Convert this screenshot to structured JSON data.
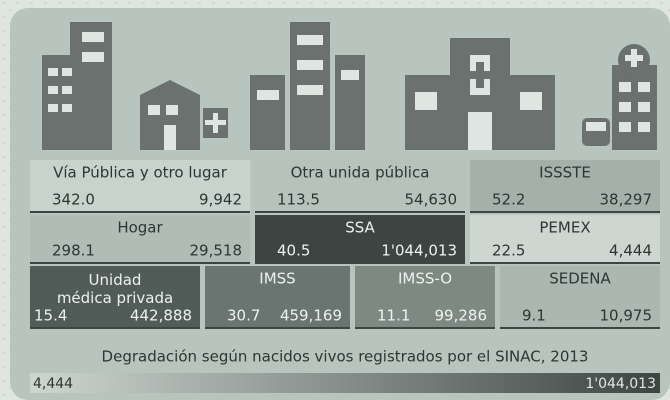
{
  "tiles": [
    {
      "label": "Vía Pública y otro lugar",
      "rate": "342.0",
      "births": "9,942",
      "color": "#c9d3ce"
    },
    {
      "label": "Otra unida pública",
      "rate": "113.5",
      "births": "54,630",
      "color": "#b6c2bc"
    },
    {
      "label": "ISSSTE",
      "rate": "52.2",
      "births": "38,297",
      "color": "#a4b0aa"
    },
    {
      "label": "Hogar",
      "rate": "298.1",
      "births": "29,518",
      "color": "#b0bcb6"
    },
    {
      "label": "SSA",
      "rate": "40.5",
      "births": "1'044,013",
      "color": "#3d4542"
    },
    {
      "label": "PEMEX",
      "rate": "22.5",
      "births": "4,444",
      "color": "#cdd6d1"
    },
    {
      "label": "Unidad médica privada",
      "rate": "15.4",
      "births": "442,888",
      "color": "#515b57"
    },
    {
      "label": "IMSS",
      "rate": "30.7",
      "births": "459,169",
      "color": "#6a7470"
    },
    {
      "label": "IMSS-O",
      "rate": "11.1",
      "births": "99,286",
      "color": "#7e8984"
    },
    {
      "label": "SEDENA",
      "rate": "9.1",
      "births": "10,975",
      "color": "#abb7b1"
    }
  ],
  "legend": {
    "caption": "Degradación según nacidos vivos registrados por el SINAC, 2013",
    "min": "4,444",
    "max": "1'044,013",
    "min_color": "#cdd6d1",
    "max_color": "#3d4542"
  }
}
